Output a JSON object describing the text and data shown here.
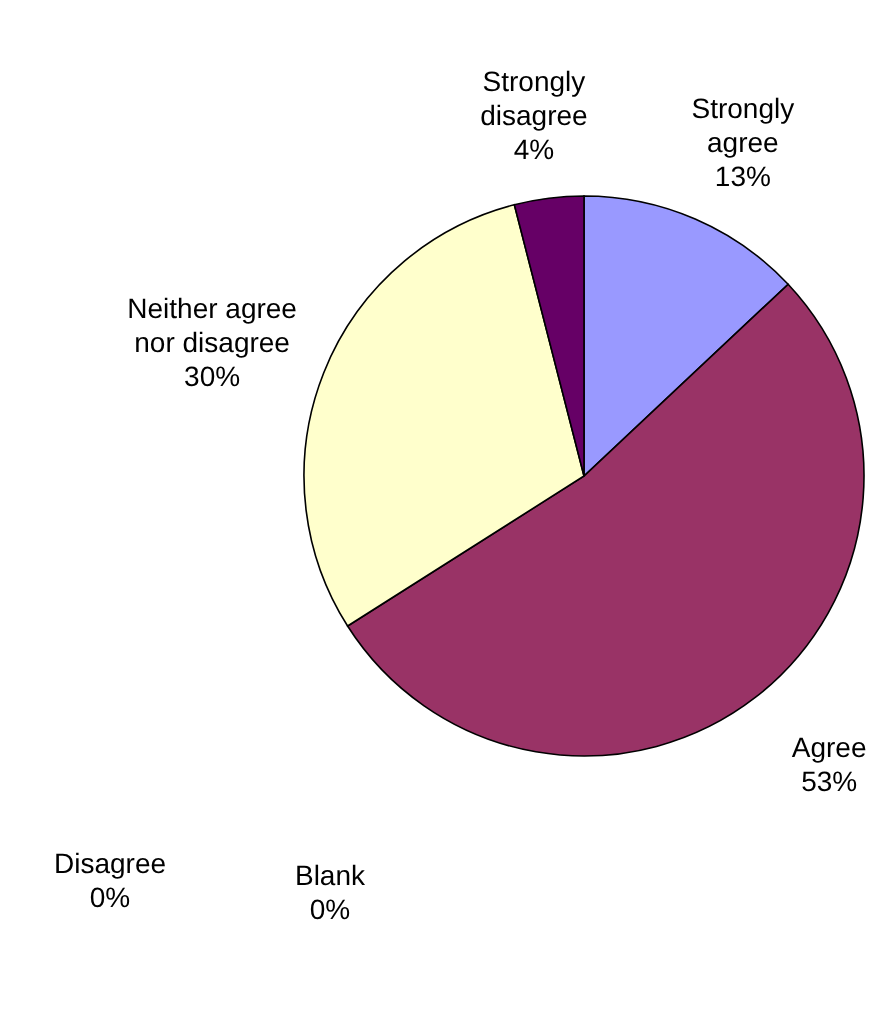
{
  "chart_data": {
    "type": "pie",
    "categories": [
      "Strongly agree",
      "Agree",
      "Disagree",
      "Blank",
      "Neither agree nor disagree",
      "Strongly disagree"
    ],
    "values": [
      13,
      53,
      0,
      0,
      30,
      4
    ],
    "colors": [
      "#9999ff",
      "#993366",
      "#ccffff",
      "#ff8080",
      "#ffffcc",
      "#660066"
    ],
    "value_labels": [
      "13%",
      "53%",
      "0%",
      "0%",
      "30%",
      "4%"
    ]
  }
}
